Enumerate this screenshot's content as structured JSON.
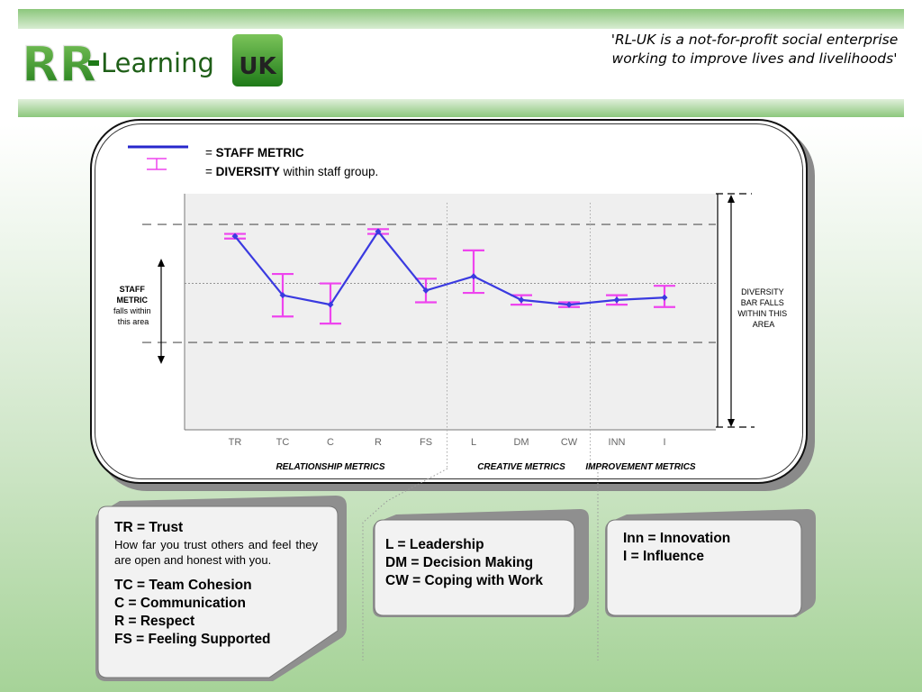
{
  "header": {
    "logo": {
      "mark": "RR",
      "text": "Learning",
      "badge": "UK"
    },
    "tagline": "'RL-UK is a not-for-profit social enterprise working to improve lives and livelihoods'"
  },
  "legend": {
    "line_prefix": "= ",
    "line_bold": "STAFF METRIC",
    "bar_prefix": "= ",
    "bar_bold": "DIVERSITY",
    "bar_rest": " within staff group."
  },
  "annotations": {
    "staff_band": [
      "STAFF",
      "METRIC",
      "falls within",
      "this area"
    ],
    "diversity_band": [
      "DIVERSITY",
      "BAR FALLS",
      "WITHIN THIS",
      "AREA"
    ]
  },
  "groups": [
    {
      "label": "RELATIONSHIP METRICS",
      "range": [
        0,
        4
      ]
    },
    {
      "label": "CREATIVE  METRICS",
      "range": [
        5,
        7
      ]
    },
    {
      "label": "IMPROVEMENT METRICS",
      "range": [
        8,
        9
      ]
    }
  ],
  "colors": {
    "line": "#3a3ae0",
    "error_bar": "#ee44ee",
    "plot_bg": "#efefef",
    "green": "#3f9a2a"
  },
  "chart_data": {
    "type": "line",
    "categories": [
      "TR",
      "TC",
      "C",
      "R",
      "FS",
      "L",
      "DM",
      "CW",
      "INN",
      "I"
    ],
    "series": [
      {
        "values": [
          0.82,
          0.57,
          0.53,
          0.84,
          0.59,
          0.65,
          0.55,
          0.53,
          0.55,
          0.56
        ],
        "error_low": [
          0.81,
          0.48,
          0.45,
          0.83,
          0.54,
          0.58,
          0.53,
          0.52,
          0.53,
          0.52
        ],
        "error_high": [
          0.83,
          0.66,
          0.62,
          0.85,
          0.64,
          0.76,
          0.57,
          0.54,
          0.57,
          0.61
        ]
      }
    ],
    "ylim": [
      0,
      1
    ],
    "reference_lines": [
      0.37,
      0.62,
      0.87
    ],
    "grid": false
  },
  "definitions": {
    "relationship": {
      "tr_term": "TR = Trust",
      "tr_desc": "How far  you trust others and feel they are open and honest with you.",
      "items": [
        "TC = Team Cohesion",
        "C = Communication",
        "R = Respect",
        "FS = Feeling Supported"
      ]
    },
    "creative": {
      "items": [
        "L = Leadership",
        "DM = Decision Making",
        "CW = Coping with Work"
      ]
    },
    "improvement": {
      "items": [
        "Inn = Innovation",
        "I = Influence"
      ]
    }
  }
}
